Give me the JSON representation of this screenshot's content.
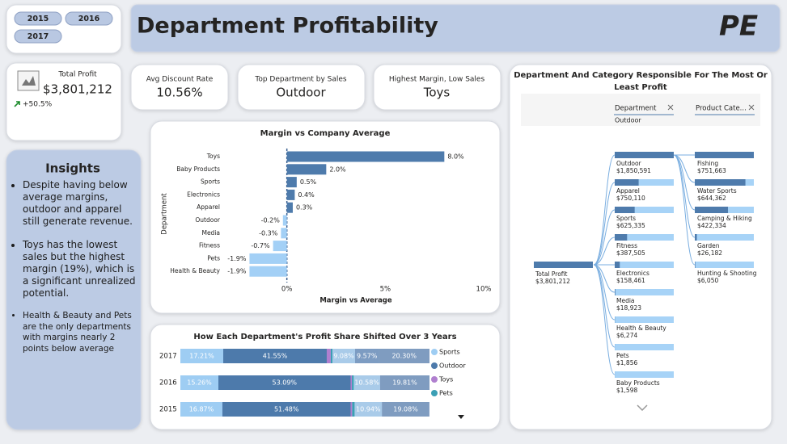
{
  "slicer": {
    "years": [
      "2015",
      "2016",
      "2017"
    ]
  },
  "header": {
    "title": "Department Profitability",
    "logo": "PE"
  },
  "total_profit": {
    "label": "Total Profit",
    "value": "$3,801,212",
    "change": "+50.5%"
  },
  "cards": [
    {
      "label": "Avg Discount Rate",
      "value": "10.56%"
    },
    {
      "label": "Top Department by Sales",
      "value": "Outdoor"
    },
    {
      "label": "Highest Margin, Low Sales",
      "value": "Toys"
    }
  ],
  "insights": {
    "title": "Insights",
    "bullets": [
      "Despite having below average margins, outdoor and apparel still generate revenue.",
      "Toys has the lowest sales but the highest margin (19%), which is a significant unrealized potential.",
      "Health & Beauty and Pets are the only departments with margins nearly 2 points below average"
    ]
  },
  "chart_data": [
    {
      "type": "bar",
      "orientation": "horizontal",
      "title": "Margin vs Company Average",
      "y_label": "Department",
      "x_label": "Margin vs Average",
      "categories": [
        "Toys",
        "Baby Products",
        "Sports",
        "Electronics",
        "Apparel",
        "Outdoor",
        "Media",
        "Fitness",
        "Pets",
        "Health & Beauty"
      ],
      "values": [
        8.0,
        2.0,
        0.5,
        0.4,
        0.3,
        -0.2,
        -0.3,
        -0.7,
        -1.9,
        -1.9
      ],
      "value_labels": [
        "8.0%",
        "2.0%",
        "0.5%",
        "0.4%",
        "0.3%",
        "-0.2%",
        "-0.3%",
        "-0.7%",
        "-1.9%",
        "-1.9%"
      ],
      "color": "#4e7bac",
      "negative_color": "#a3d0f6",
      "xlim": [
        -2,
        10
      ],
      "xticks": [
        {
          "value": 0,
          "label": "0%"
        },
        {
          "value": 5,
          "label": "5%"
        },
        {
          "value": 10,
          "label": "10%"
        }
      ]
    },
    {
      "type": "stacked_bar",
      "orientation": "horizontal",
      "title": "How Each Department's Profit Share Shifted Over 3 Years",
      "categories": [
        "2017",
        "2016",
        "2015"
      ],
      "xlim": [
        0,
        100
      ],
      "series": [
        {
          "name": "Sports",
          "color": "#9ecdf3",
          "values": [
            17.21,
            15.26,
            16.87
          ],
          "value_labels": [
            "17.21%",
            "15.26%",
            "16.87%"
          ]
        },
        {
          "name": "Outdoor",
          "color": "#4d7aab",
          "values": [
            41.55,
            53.09,
            51.48
          ],
          "value_labels": [
            "41.55%",
            "53.09%",
            "51.48%"
          ]
        },
        {
          "name": "Toys",
          "color": "#b07fcf",
          "values": [
            1.6,
            0.5,
            0.6
          ]
        },
        {
          "name": "Pets",
          "color": "#3b9fb5",
          "values": [
            0.69,
            0.76,
            1.0
          ]
        },
        {
          "color": "#a9cbe9",
          "values": [
            9.08,
            10.58,
            10.94
          ],
          "value_labels": [
            "9.08%",
            "10.58%",
            "10.94%"
          ]
        },
        {
          "color": "#7d9cc2",
          "values": [
            9.57,
            null,
            null
          ],
          "value_labels": [
            "9.57%",
            null,
            null
          ]
        },
        {
          "color": "#7f9cc0",
          "values": [
            20.3,
            19.81,
            19.08
          ],
          "value_labels": [
            "20.30%",
            "19.81%",
            "19.08%"
          ]
        }
      ]
    }
  ],
  "decomposition_tree": {
    "title": "Department And Category Responsible For The Most Or Least Profit",
    "levels": [
      {
        "label": "Department",
        "selected": "Outdoor"
      },
      {
        "label": "Product Cate..."
      }
    ],
    "root": {
      "name": "Total Profit",
      "value": 3801212,
      "value_label": "$3,801,212"
    },
    "departments": [
      {
        "name": "Outdoor",
        "value": 1850591,
        "value_label": "$1,850,591"
      },
      {
        "name": "Apparel",
        "value": 750110,
        "value_label": "$750,110"
      },
      {
        "name": "Sports",
        "value": 625335,
        "value_label": "$625,335"
      },
      {
        "name": "Fitness",
        "value": 387505,
        "value_label": "$387,505"
      },
      {
        "name": "Electronics",
        "value": 158461,
        "value_label": "$158,461"
      },
      {
        "name": "Media",
        "value": 18923,
        "value_label": "$18,923"
      },
      {
        "name": "Health & Beauty",
        "value": 6274,
        "value_label": "$6,274"
      },
      {
        "name": "Pets",
        "value": 1856,
        "value_label": "$1,856"
      },
      {
        "name": "Baby Products",
        "value": 1598,
        "value_label": "$1,598"
      }
    ],
    "categories": [
      {
        "name": "Fishing",
        "value": 751663,
        "value_label": "$751,663"
      },
      {
        "name": "Water Sports",
        "value": 644362,
        "value_label": "$644,362"
      },
      {
        "name": "Camping & Hiking",
        "value": 422334,
        "value_label": "$422,334"
      },
      {
        "name": "Garden",
        "value": 26182,
        "value_label": "$26,182"
      },
      {
        "name": "Hunting & Shooting",
        "value": 6050,
        "value_label": "$6,050"
      }
    ]
  }
}
